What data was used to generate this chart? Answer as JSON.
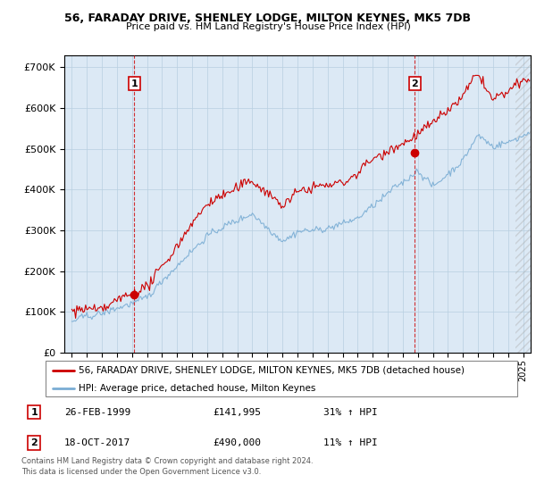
{
  "title": "56, FARADAY DRIVE, SHENLEY LODGE, MILTON KEYNES, MK5 7DB",
  "subtitle": "Price paid vs. HM Land Registry's House Price Index (HPI)",
  "bg_color": "#dce9f5",
  "red_color": "#cc0000",
  "blue_color": "#7aadd4",
  "ylim_min": 0,
  "ylim_max": 730000,
  "yticks": [
    0,
    100000,
    200000,
    300000,
    400000,
    500000,
    600000,
    700000
  ],
  "ytick_labels": [
    "£0",
    "£100K",
    "£200K",
    "£300K",
    "£400K",
    "£500K",
    "£600K",
    "£700K"
  ],
  "sale1_year": 1999.15,
  "sale1_price": 141995,
  "sale1_label": "1",
  "sale2_year": 2017.8,
  "sale2_price": 490000,
  "sale2_label": "2",
  "legend_line1": "56, FARADAY DRIVE, SHENLEY LODGE, MILTON KEYNES, MK5 7DB (detached house)",
  "legend_line2": "HPI: Average price, detached house, Milton Keynes",
  "table_row1": [
    "1",
    "26-FEB-1999",
    "£141,995",
    "31% ↑ HPI"
  ],
  "table_row2": [
    "2",
    "18-OCT-2017",
    "£490,000",
    "11% ↑ HPI"
  ],
  "footer": "Contains HM Land Registry data © Crown copyright and database right 2024.\nThis data is licensed under the Open Government Licence v3.0.",
  "xmin": 1994.5,
  "xmax": 2025.5
}
